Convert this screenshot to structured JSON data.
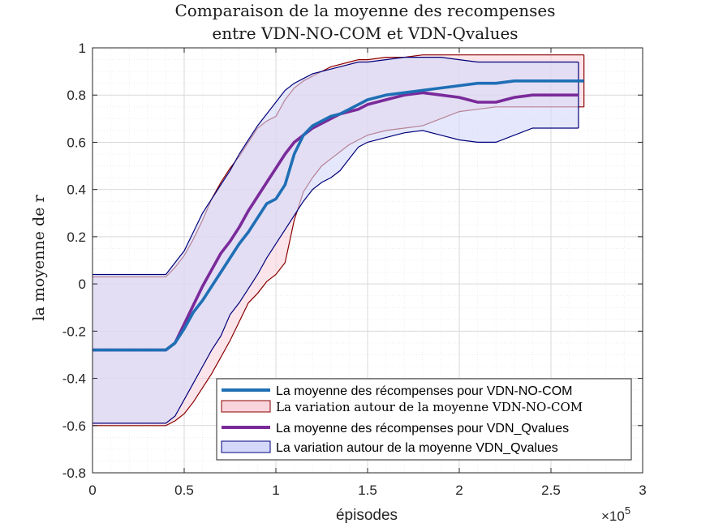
{
  "chart_data": {
    "type": "area",
    "title": [
      "Comparaison de la moyenne des recompenses",
      "entre VDN-NO-COM et VDN-Qvalues"
    ],
    "xlabel": "épisodes",
    "ylabel": "la moyenne de r",
    "x_exponent_label": "×10",
    "x_exponent_power": "5",
    "xlim": [
      0,
      300000
    ],
    "ylim": [
      -0.8,
      1
    ],
    "xticks": [
      0,
      50000,
      100000,
      150000,
      200000,
      250000,
      300000
    ],
    "xtick_labels": [
      "0",
      "0.5",
      "1",
      "1.5",
      "2",
      "2.5",
      "3"
    ],
    "yticks": [
      -0.8,
      -0.6,
      -0.4,
      -0.2,
      0,
      0.2,
      0.4,
      0.6,
      0.8,
      1
    ],
    "ytick_labels": [
      "-0.8",
      "-0.6",
      "-0.4",
      "-0.2",
      "0",
      "0.2",
      "0.4",
      "0.6",
      "0.8",
      "1"
    ],
    "grid": true,
    "minor_grid": true,
    "legend_position": "bottom-right",
    "colors": {
      "nocom_mean": "#1f6fb5",
      "nocom_band_fill": "#f9d4dc",
      "nocom_band_edge": "#8b0000",
      "qv_mean": "#7a2a9a",
      "qv_band_fill": "#d4d8fa",
      "qv_band_edge": "#00007a"
    },
    "series": [
      {
        "name": "La moyenne des récompenses pour VDN-NO-COM",
        "kind": "mean",
        "x": [
          0,
          40000,
          45000,
          50000,
          55000,
          60000,
          65000,
          70000,
          75000,
          80000,
          85000,
          90000,
          95000,
          100000,
          105000,
          110000,
          115000,
          120000,
          125000,
          130000,
          135000,
          140000,
          145000,
          150000,
          160000,
          170000,
          180000,
          190000,
          200000,
          210000,
          220000,
          230000,
          240000,
          250000,
          260000,
          268000
        ],
        "y": [
          -0.28,
          -0.28,
          -0.25,
          -0.19,
          -0.12,
          -0.07,
          -0.01,
          0.05,
          0.11,
          0.17,
          0.22,
          0.28,
          0.34,
          0.36,
          0.42,
          0.55,
          0.63,
          0.67,
          0.69,
          0.71,
          0.72,
          0.74,
          0.76,
          0.78,
          0.8,
          0.81,
          0.82,
          0.83,
          0.84,
          0.85,
          0.85,
          0.86,
          0.86,
          0.86,
          0.86,
          0.86
        ]
      },
      {
        "name": "La variation autour de la moyenne VDN-NO-COM",
        "kind": "band",
        "x": [
          0,
          40000,
          45000,
          50000,
          55000,
          60000,
          65000,
          70000,
          75000,
          80000,
          85000,
          90000,
          95000,
          100000,
          105000,
          110000,
          115000,
          120000,
          125000,
          130000,
          135000,
          140000,
          145000,
          150000,
          160000,
          170000,
          180000,
          190000,
          200000,
          210000,
          220000,
          230000,
          240000,
          250000,
          260000,
          268000
        ],
        "upper": [
          0.03,
          0.03,
          0.07,
          0.12,
          0.19,
          0.27,
          0.36,
          0.43,
          0.49,
          0.54,
          0.6,
          0.66,
          0.69,
          0.71,
          0.78,
          0.83,
          0.86,
          0.88,
          0.9,
          0.92,
          0.93,
          0.94,
          0.95,
          0.95,
          0.96,
          0.96,
          0.97,
          0.97,
          0.97,
          0.97,
          0.97,
          0.97,
          0.97,
          0.97,
          0.97,
          0.97
        ],
        "lower": [
          -0.6,
          -0.6,
          -0.58,
          -0.55,
          -0.5,
          -0.44,
          -0.38,
          -0.31,
          -0.24,
          -0.16,
          -0.08,
          -0.04,
          0.01,
          0.04,
          0.09,
          0.27,
          0.39,
          0.45,
          0.5,
          0.53,
          0.56,
          0.59,
          0.61,
          0.63,
          0.65,
          0.66,
          0.67,
          0.7,
          0.73,
          0.74,
          0.75,
          0.75,
          0.75,
          0.75,
          0.75,
          0.75
        ]
      },
      {
        "name": "La moyenne des récompenses pour VDN_Qvalues",
        "kind": "mean",
        "x": [
          0,
          40000,
          45000,
          50000,
          55000,
          60000,
          65000,
          70000,
          75000,
          80000,
          85000,
          90000,
          95000,
          100000,
          105000,
          110000,
          115000,
          120000,
          125000,
          130000,
          135000,
          140000,
          145000,
          150000,
          160000,
          170000,
          180000,
          190000,
          200000,
          210000,
          220000,
          230000,
          240000,
          250000,
          260000,
          265000
        ],
        "y": [
          -0.28,
          -0.28,
          -0.25,
          -0.17,
          -0.09,
          -0.01,
          0.06,
          0.13,
          0.18,
          0.24,
          0.31,
          0.37,
          0.43,
          0.49,
          0.55,
          0.6,
          0.63,
          0.66,
          0.68,
          0.7,
          0.72,
          0.73,
          0.74,
          0.76,
          0.78,
          0.8,
          0.81,
          0.8,
          0.79,
          0.77,
          0.77,
          0.79,
          0.8,
          0.8,
          0.8,
          0.8
        ]
      },
      {
        "name": "La variation autour de la moyenne VDN_Qvalues",
        "kind": "band",
        "x": [
          0,
          40000,
          45000,
          50000,
          55000,
          60000,
          65000,
          70000,
          75000,
          80000,
          85000,
          90000,
          95000,
          100000,
          105000,
          110000,
          115000,
          120000,
          125000,
          130000,
          135000,
          140000,
          145000,
          150000,
          160000,
          170000,
          180000,
          190000,
          200000,
          210000,
          220000,
          230000,
          240000,
          250000,
          260000,
          265000
        ],
        "upper": [
          0.04,
          0.04,
          0.09,
          0.14,
          0.22,
          0.3,
          0.36,
          0.42,
          0.48,
          0.55,
          0.61,
          0.67,
          0.72,
          0.77,
          0.82,
          0.85,
          0.87,
          0.89,
          0.9,
          0.91,
          0.92,
          0.93,
          0.94,
          0.94,
          0.95,
          0.96,
          0.96,
          0.96,
          0.95,
          0.94,
          0.94,
          0.94,
          0.94,
          0.94,
          0.94,
          0.94
        ],
        "lower": [
          -0.59,
          -0.59,
          -0.56,
          -0.49,
          -0.42,
          -0.35,
          -0.28,
          -0.22,
          -0.13,
          -0.08,
          -0.02,
          0.04,
          0.11,
          0.17,
          0.23,
          0.29,
          0.35,
          0.4,
          0.43,
          0.45,
          0.48,
          0.53,
          0.58,
          0.6,
          0.62,
          0.64,
          0.65,
          0.63,
          0.61,
          0.6,
          0.6,
          0.63,
          0.66,
          0.66,
          0.66,
          0.66
        ]
      }
    ]
  }
}
